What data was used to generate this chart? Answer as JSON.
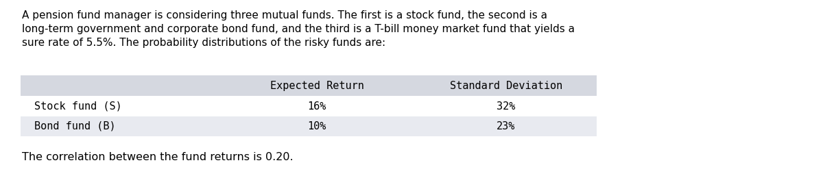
{
  "paragraph_lines": [
    "A pension fund manager is considering three mutual funds. The first is a stock fund, the second is a",
    "long-term government and corporate bond fund, and the third is a T-bill money market fund that yields a",
    "sure rate of 5.5%. The probability distributions of the risky funds are:"
  ],
  "table_header": [
    "",
    "Expected Return",
    "Standard Deviation"
  ],
  "table_rows": [
    [
      "Stock fund (S)",
      "16%",
      "32%"
    ],
    [
      "Bond fund (B)",
      "10%",
      "23%"
    ]
  ],
  "footer": "The correlation between the fund returns is 0.20.",
  "header_bg": "#d5d8e0",
  "row1_bg": "#ffffff",
  "row2_bg": "#e8eaf0",
  "text_color": "#000000",
  "background_color": "#ffffff",
  "para_fontsize": 11.0,
  "table_fontsize": 11.0,
  "footer_fontsize": 11.5
}
